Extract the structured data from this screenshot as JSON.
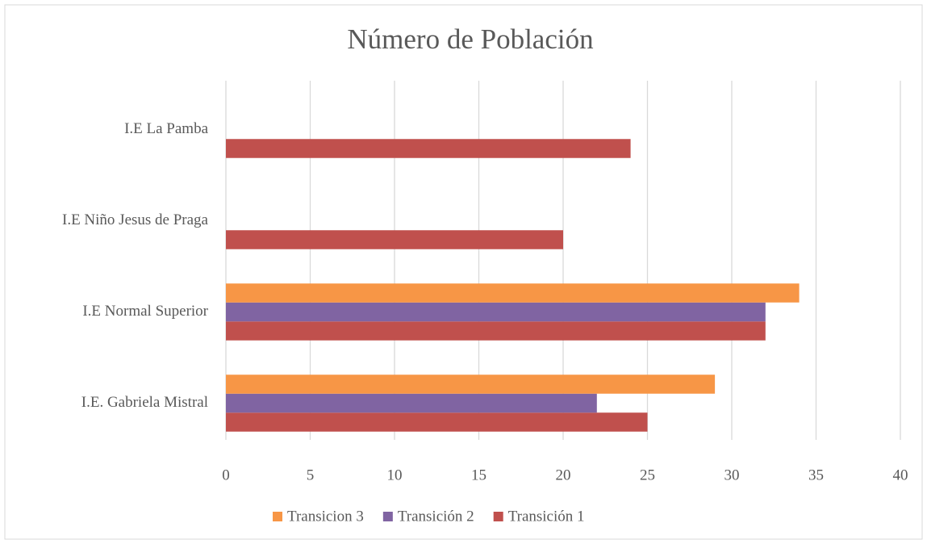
{
  "chart_data": {
    "type": "bar",
    "orientation": "horizontal",
    "title": "Número de Población",
    "categories": [
      "I.E. Gabriela Mistral",
      "I.E Normal Superior",
      "I.E Niño Jesus de Praga",
      "I.E La Pamba"
    ],
    "series": [
      {
        "name": "Transición 1",
        "color": "#c0504d",
        "values": [
          25,
          32,
          20,
          24
        ]
      },
      {
        "name": "Transición 2",
        "color": "#8064a2",
        "values": [
          22,
          32,
          null,
          null
        ]
      },
      {
        "name": "Transicion 3",
        "color": "#f79646",
        "values": [
          29,
          34,
          null,
          null
        ]
      }
    ],
    "xlim": [
      0,
      40
    ],
    "xticks": [
      0,
      5,
      10,
      15,
      20,
      25,
      30,
      35,
      40
    ],
    "grid": true,
    "legend": "bottom"
  }
}
